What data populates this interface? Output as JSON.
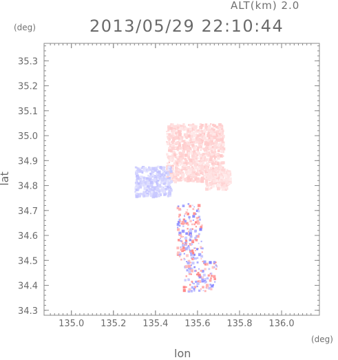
{
  "header": {
    "altitude": "ALT(km) 2.0",
    "datetime": "2013/05/29 22:10:44"
  },
  "chart_data": {
    "type": "heatmap",
    "title": "2013/05/29 22:10:44",
    "subtitle": "ALT(km) 2.0",
    "xlabel": "lon",
    "ylabel": "lat",
    "x_unit": "(deg)",
    "y_unit": "(deg)",
    "xlim": [
      134.87,
      136.18
    ],
    "ylim": [
      34.28,
      35.37
    ],
    "x_ticks": [
      135.0,
      135.2,
      135.4,
      135.6,
      135.8,
      136.0
    ],
    "x_tick_labels": [
      "135.0",
      "135.2",
      "135.4",
      "135.6",
      "135.8",
      "136.0"
    ],
    "y_ticks": [
      34.3,
      34.4,
      34.5,
      34.6,
      34.7,
      34.8,
      34.9,
      35.0,
      35.1,
      35.2,
      35.3
    ],
    "y_tick_labels": [
      "34.3",
      "34.4",
      "34.5",
      "34.6",
      "34.7",
      "34.8",
      "34.9",
      "35.0",
      "35.1",
      "35.2",
      "35.3"
    ],
    "grid": false,
    "colors": {
      "positive": "#f08a8a",
      "negative": "#8a8af0",
      "axis": "#888888"
    },
    "regions": [
      {
        "name": "north-pink",
        "lon_min": 135.45,
        "lon_max": 135.72,
        "lat_min": 34.82,
        "lat_max": 35.05,
        "sign": 1,
        "strength": 0.35
      },
      {
        "name": "west-blue",
        "lon_min": 135.3,
        "lon_max": 135.47,
        "lat_min": 34.76,
        "lat_max": 34.88,
        "sign": -1,
        "strength": 0.4
      },
      {
        "name": "east-pink",
        "lon_min": 135.63,
        "lon_max": 135.75,
        "lat_min": 34.79,
        "lat_max": 34.87,
        "sign": 1,
        "strength": 0.3
      },
      {
        "name": "central-band",
        "lon_min": 135.5,
        "lon_max": 135.62,
        "lat_min": 34.5,
        "lat_max": 34.73,
        "sign": 0,
        "strength": 0.8
      },
      {
        "name": "south-band",
        "lon_min": 135.53,
        "lon_max": 135.69,
        "lat_min": 34.38,
        "lat_max": 34.5,
        "sign": 0,
        "strength": 0.8
      }
    ]
  }
}
